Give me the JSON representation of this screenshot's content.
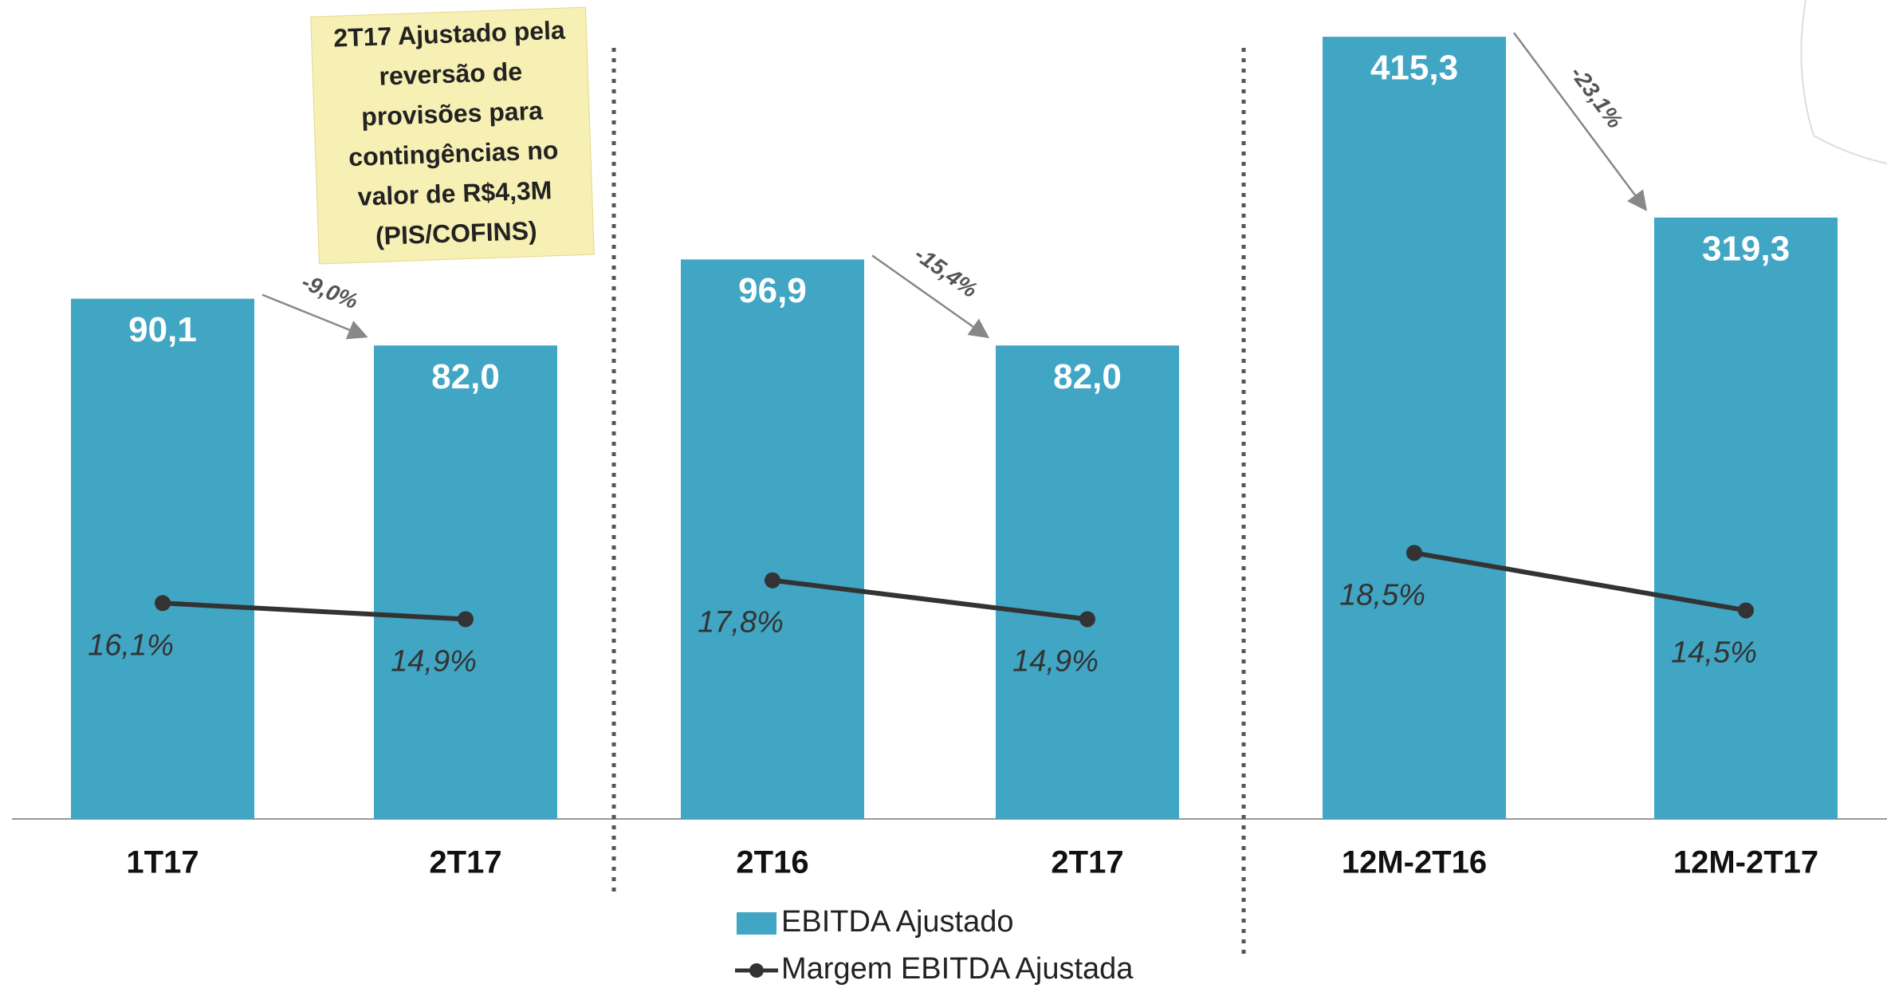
{
  "chart_data": {
    "type": "bar",
    "series": [
      {
        "name": "EBITDA Ajustado",
        "color": "#41a5c4"
      },
      {
        "name": "Margem EBITDA Ajustada",
        "color": "#333333",
        "axis": "y2"
      }
    ],
    "groups": [
      {
        "categories": [
          "1T17",
          "2T17"
        ],
        "values": [
          90.1,
          82.0
        ],
        "value_labels": [
          "90,1",
          "82,0"
        ],
        "margin": [
          16.1,
          14.9
        ],
        "margin_labels": [
          "16,1%",
          "14,9%"
        ],
        "change": "-9,0%",
        "ylim": [
          0,
          137
        ],
        "y2lim": [
          0,
          59
        ]
      },
      {
        "categories": [
          "2T16",
          "2T17"
        ],
        "values": [
          96.9,
          82.0
        ],
        "value_labels": [
          "96,9",
          "82,0"
        ],
        "margin": [
          17.8,
          14.9
        ],
        "margin_labels": [
          "17,8%",
          "14,9%"
        ],
        "change": "-15,4%",
        "ylim": [
          0,
          137
        ],
        "y2lim": [
          0,
          59
        ]
      },
      {
        "categories": [
          "12M-2T16",
          "12M-2T17"
        ],
        "values": [
          415.3,
          319.3
        ],
        "value_labels": [
          "415,3",
          "319,3"
        ],
        "margin": [
          18.5,
          14.5
        ],
        "margin_labels": [
          "18,5%",
          "14,5%"
        ],
        "change": "-23,1%",
        "ylim": [
          0,
          420
        ],
        "y2lim": [
          0,
          55
        ]
      }
    ],
    "note": [
      "2T17 Ajustado pela",
      "reversão de",
      "provisões para",
      "contingências no",
      "valor de R$4,3M",
      "(PIS/COFINS)"
    ]
  }
}
